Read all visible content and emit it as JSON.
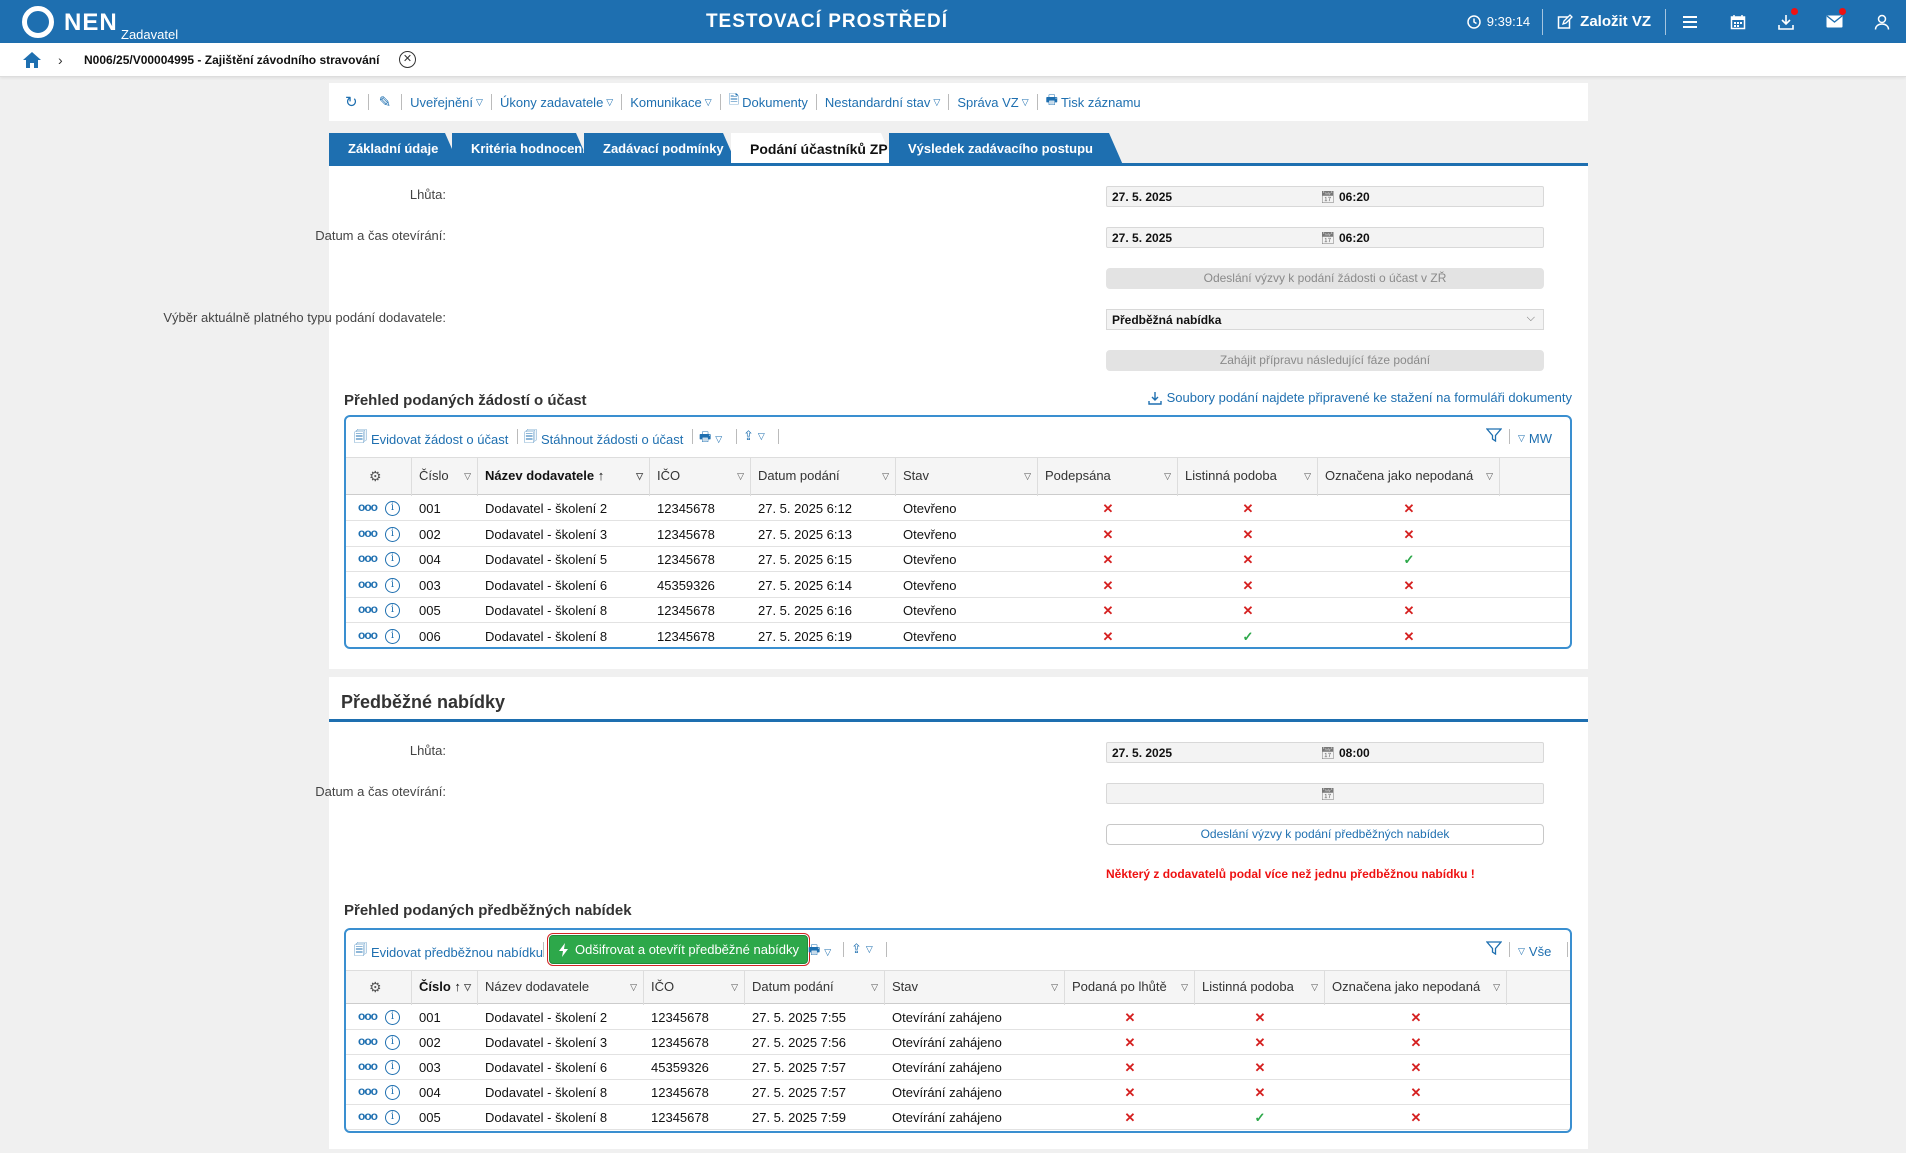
{
  "topbar": {
    "logo": "NEN",
    "logo_sub": "Zadavatel",
    "env_title": "TESTOVACÍ PROSTŘEDÍ",
    "clock": "9:39:14",
    "create_label": "Založit VZ"
  },
  "breadcrumb": {
    "text": "N006/25/V00004995 - Zajištění závodního stravování"
  },
  "toolbar": {
    "items": [
      "Uveřejnění",
      "Úkony zadavatele",
      "Komunikace",
      "Dokumenty",
      "Nestandardní stav",
      "Správa VZ",
      "Tisk záznamu"
    ]
  },
  "tabs": [
    "Základní údaje",
    "Kritéria hodnocení",
    "Zadávací podmínky",
    "Podání účastníků ZP",
    "Výsledek zadávacího postupu"
  ],
  "section1": {
    "deadline_label": "Lhůta:",
    "deadline_date": "27. 5. 2025",
    "deadline_time": "06:20",
    "opening_label": "Datum a čas otevírání:",
    "opening_date": "27. 5. 2025",
    "opening_time": "06:20",
    "send_btn": "Odeslání výzvy k podání žádosti o účast v ZŘ",
    "type_label": "Výběr aktuálně platného typu podání dodavatele:",
    "type_value": "Předběžná nabídka",
    "next_phase_btn": "Zahájit přípravu následující fáze podání",
    "overview_title": "Přehled podaných žádostí o účast",
    "download_note": "Soubory podání najdete připravené ke stažení na formuláři dokumenty",
    "grid_toolbar": {
      "register": "Evidovat žádost o účast",
      "download": "Stáhnout žádosti o účast",
      "right_label": "MW"
    },
    "columns": [
      "Číslo",
      "Název dodavatele",
      "IČO",
      "Datum podání",
      "Stav",
      "Podepsána",
      "Listinná podoba",
      "Označena jako nepodaná"
    ],
    "rows": [
      {
        "cislo": "001",
        "nazev": "Dodavatel - školení 2",
        "ico": "12345678",
        "datum": "27. 5. 2025 6:12",
        "stav": "Otevřeno",
        "podepsana": "✕",
        "listinna": "✕",
        "nepodana": "✕"
      },
      {
        "cislo": "002",
        "nazev": "Dodavatel - školení 3",
        "ico": "12345678",
        "datum": "27. 5. 2025 6:13",
        "stav": "Otevřeno",
        "podepsana": "✕",
        "listinna": "✕",
        "nepodana": "✕"
      },
      {
        "cislo": "004",
        "nazev": "Dodavatel - školení 5",
        "ico": "12345678",
        "datum": "27. 5. 2025 6:15",
        "stav": "Otevřeno",
        "podepsana": "✕",
        "listinna": "✕",
        "nepodana": "✓"
      },
      {
        "cislo": "003",
        "nazev": "Dodavatel - školení 6",
        "ico": "45359326",
        "datum": "27. 5. 2025 6:14",
        "stav": "Otevřeno",
        "podepsana": "✕",
        "listinna": "✕",
        "nepodana": "✕"
      },
      {
        "cislo": "005",
        "nazev": "Dodavatel - školení 8",
        "ico": "12345678",
        "datum": "27. 5. 2025 6:16",
        "stav": "Otevřeno",
        "podepsana": "✕",
        "listinna": "✕",
        "nepodana": "✕"
      },
      {
        "cislo": "006",
        "nazev": "Dodavatel - školení 8",
        "ico": "12345678",
        "datum": "27. 5. 2025 6:19",
        "stav": "Otevřeno",
        "podepsana": "✕",
        "listinna": "✓",
        "nepodana": "✕"
      }
    ]
  },
  "section2": {
    "title": "Předběžné nabídky",
    "deadline_label": "Lhůta:",
    "deadline_date": "27. 5. 2025",
    "deadline_time": "08:00",
    "opening_label": "Datum a čas otevírání:",
    "send_btn": "Odeslání výzvy k podání předběžných nabídek",
    "warning": "Některý z dodavatelů podal více než jednu předběžnou nabídku !",
    "overview_title": "Přehled podaných předběžných nabídek",
    "grid_toolbar": {
      "register": "Evidovat předběžnou nabídku",
      "decrypt": "Odšifrovat a otevřít předběžné nabídky",
      "right_label": "Vše"
    },
    "columns": [
      "Číslo",
      "Název dodavatele",
      "IČO",
      "Datum podání",
      "Stav",
      "Podaná po lhůtě",
      "Listinná podoba",
      "Označena jako nepodaná"
    ],
    "rows": [
      {
        "cislo": "001",
        "nazev": "Dodavatel - školení 2",
        "ico": "12345678",
        "datum": "27. 5. 2025 7:55",
        "stav": "Otevírání zahájeno",
        "po_lhute": "✕",
        "listinna": "✕",
        "nepodana": "✕"
      },
      {
        "cislo": "002",
        "nazev": "Dodavatel - školení 3",
        "ico": "12345678",
        "datum": "27. 5. 2025 7:56",
        "stav": "Otevírání zahájeno",
        "po_lhute": "✕",
        "listinna": "✕",
        "nepodana": "✕"
      },
      {
        "cislo": "003",
        "nazev": "Dodavatel - školení 6",
        "ico": "45359326",
        "datum": "27. 5. 2025 7:57",
        "stav": "Otevírání zahájeno",
        "po_lhute": "✕",
        "listinna": "✕",
        "nepodana": "✕"
      },
      {
        "cislo": "004",
        "nazev": "Dodavatel - školení 8",
        "ico": "12345678",
        "datum": "27. 5. 2025 7:57",
        "stav": "Otevírání zahájeno",
        "po_lhute": "✕",
        "listinna": "✕",
        "nepodana": "✕"
      },
      {
        "cislo": "005",
        "nazev": "Dodavatel - školení 8",
        "ico": "12345678",
        "datum": "27. 5. 2025 7:59",
        "stav": "Otevírání zahájeno",
        "po_lhute": "✕",
        "listinna": "✓",
        "nepodana": "✕"
      }
    ]
  }
}
